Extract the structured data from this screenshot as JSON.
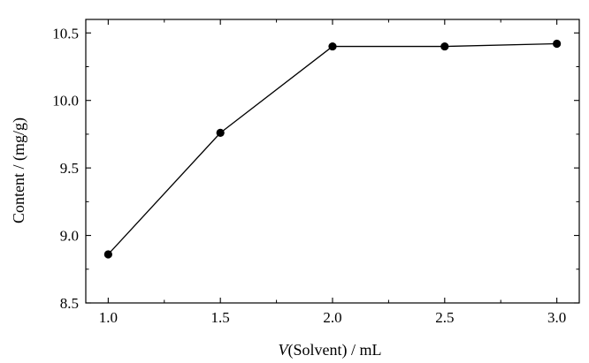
{
  "chart_data": {
    "type": "line",
    "xlabel_italic": "V",
    "xlabel_rest": "(Solvent) / mL",
    "ylabel": "Content / (mg/g)",
    "xlim": [
      0.9,
      3.1
    ],
    "ylim": [
      8.5,
      10.6
    ],
    "xticks": [
      1.0,
      1.5,
      2.0,
      2.5,
      3.0
    ],
    "xtick_labels": [
      "1.0",
      "1.5",
      "2.0",
      "2.5",
      "3.0"
    ],
    "yticks": [
      8.5,
      9.0,
      9.5,
      10.0,
      10.5
    ],
    "ytick_labels": [
      "8.5",
      "9.0",
      "9.5",
      "10.0",
      "10.5"
    ],
    "grid": false,
    "series": [
      {
        "x": [
          1.0,
          1.5,
          2.0,
          2.5,
          3.0
        ],
        "y": [
          8.86,
          9.76,
          10.4,
          10.4,
          10.42
        ],
        "color": "#000000",
        "marker": "circle"
      }
    ]
  }
}
